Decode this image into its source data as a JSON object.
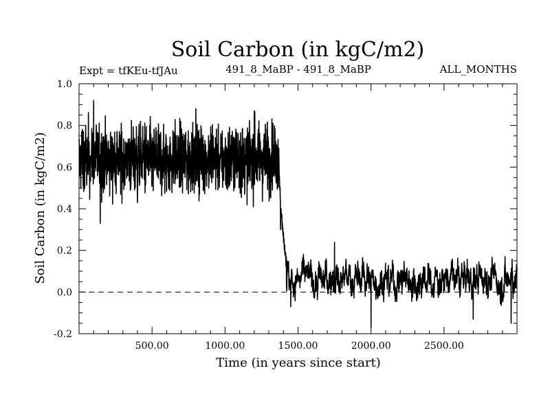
{
  "chart_data": {
    "type": "line",
    "title": "Soil Carbon (in kgC/m2)",
    "subtitle_left": "Expt = tfKEu-tfJAu",
    "subtitle_center": "491_8_MaBP - 491_8_MaBP",
    "subtitle_right": "ALL_MONTHS",
    "xlabel": "Time (in years since start)",
    "ylabel": "Soil Carbon (in kgC/m2)",
    "xlim": [
      0,
      3000
    ],
    "ylim": [
      -0.2,
      1.0
    ],
    "x_ticks": [
      500,
      1000,
      1500,
      2000,
      2500
    ],
    "x_tick_labels": [
      "500.00",
      "1000.00",
      "1500.00",
      "2000.00",
      "2500.00"
    ],
    "y_ticks": [
      -0.2,
      0.0,
      0.2,
      0.4,
      0.6,
      0.8,
      1.0
    ],
    "y_tick_labels": [
      "-0.2",
      "0.0",
      "0.2",
      "0.4",
      "0.6",
      "0.8",
      "1.0"
    ],
    "reference_line": {
      "y": 0.0,
      "style": "dashed"
    },
    "grid": false,
    "series": [
      {
        "color": "#000000",
        "phases": [
          {
            "x_range": [
              0,
              1370
            ],
            "mean": 0.64,
            "amplitude": 0.13,
            "min": 0.33,
            "max": 0.92
          },
          {
            "x_range": [
              1370,
              1420
            ],
            "start": 0.62,
            "end": 0.14
          },
          {
            "x_range": [
              1420,
              3000
            ],
            "mean": 0.06,
            "amplitude": 0.07,
            "min": -0.17,
            "max": 0.24
          }
        ],
        "anchor_points": [
          {
            "x": 10,
            "y": 0.63
          },
          {
            "x": 100,
            "y": 0.92
          },
          {
            "x": 145,
            "y": 0.33
          },
          {
            "x": 400,
            "y": 0.43
          },
          {
            "x": 800,
            "y": 0.88
          },
          {
            "x": 1200,
            "y": 0.87
          },
          {
            "x": 1380,
            "y": 0.3
          },
          {
            "x": 1420,
            "y": 0.17
          },
          {
            "x": 1450,
            "y": -0.07
          },
          {
            "x": 1750,
            "y": 0.24
          },
          {
            "x": 2000,
            "y": -0.17
          },
          {
            "x": 2700,
            "y": -0.13
          },
          {
            "x": 2960,
            "y": -0.15
          },
          {
            "x": 3000,
            "y": 0.1
          }
        ]
      }
    ]
  }
}
